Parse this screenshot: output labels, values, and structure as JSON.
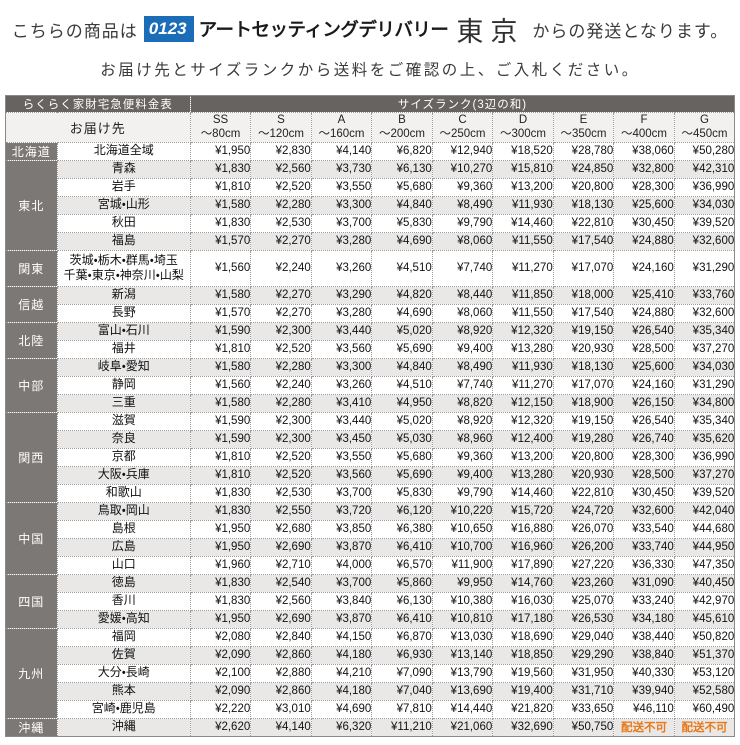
{
  "header": {
    "line1_prefix": "こちらの商品は",
    "logo_badge": "0123",
    "logo_name": "アートセッティングデリバリー",
    "logo_city": "東京",
    "line1_suffix": "からの発送となります。",
    "line2": "お届け先とサイズランクから送料をご確認の上、ご入札ください。"
  },
  "colors": {
    "logo_badge_blue": "#1b6db7",
    "table_header_dark": "#666360",
    "region_gray": "#7c7875",
    "stripe_gray": "#e9e8e7",
    "unavailable_orange": "#e87818"
  },
  "table": {
    "corner_header": "らくらく家財宅急便料金表",
    "size_rank_header": "サイズランク(3辺の和)",
    "destination_header": "お届け先",
    "unavailable_label": "配送不可",
    "size_columns": [
      {
        "rank": "SS",
        "size": "～80cm"
      },
      {
        "rank": "S",
        "size": "～120cm"
      },
      {
        "rank": "A",
        "size": "～160cm"
      },
      {
        "rank": "B",
        "size": "～200cm"
      },
      {
        "rank": "C",
        "size": "～250cm"
      },
      {
        "rank": "D",
        "size": "～300cm"
      },
      {
        "rank": "E",
        "size": "～350cm"
      },
      {
        "rank": "F",
        "size": "～400cm"
      },
      {
        "rank": "G",
        "size": "～450cm"
      }
    ],
    "regions": [
      {
        "name": "北海道",
        "rows": [
          {
            "dest": "北海道全域",
            "prices": [
              "¥1,950",
              "¥2,830",
              "¥4,140",
              "¥6,820",
              "¥12,940",
              "¥18,520",
              "¥28,780",
              "¥38,060",
              "¥50,280"
            ]
          }
        ]
      },
      {
        "name": "東北",
        "rows": [
          {
            "dest": "青森",
            "prices": [
              "¥1,830",
              "¥2,560",
              "¥3,730",
              "¥6,130",
              "¥10,270",
              "¥15,810",
              "¥24,850",
              "¥32,800",
              "¥42,310"
            ]
          },
          {
            "dest": "岩手",
            "prices": [
              "¥1,810",
              "¥2,520",
              "¥3,550",
              "¥5,680",
              "¥9,360",
              "¥13,200",
              "¥20,800",
              "¥28,300",
              "¥36,990"
            ]
          },
          {
            "dest": "宮城・山形",
            "prices": [
              "¥1,580",
              "¥2,280",
              "¥3,300",
              "¥4,840",
              "¥8,490",
              "¥11,930",
              "¥18,130",
              "¥25,600",
              "¥34,030"
            ]
          },
          {
            "dest": "秋田",
            "prices": [
              "¥1,830",
              "¥2,530",
              "¥3,700",
              "¥5,830",
              "¥9,790",
              "¥14,460",
              "¥22,810",
              "¥30,450",
              "¥39,520"
            ]
          },
          {
            "dest": "福島",
            "prices": [
              "¥1,570",
              "¥2,270",
              "¥3,280",
              "¥4,690",
              "¥8,060",
              "¥11,550",
              "¥17,540",
              "¥24,880",
              "¥32,600"
            ]
          }
        ]
      },
      {
        "name": "関東",
        "rows": [
          {
            "dest": "茨城・栃木・群馬・埼玉\n千葉・東京・神奈川・山梨",
            "prices": [
              "¥1,560",
              "¥2,240",
              "¥3,260",
              "¥4,510",
              "¥7,740",
              "¥11,270",
              "¥17,070",
              "¥24,160",
              "¥31,290"
            ]
          }
        ]
      },
      {
        "name": "信越",
        "rows": [
          {
            "dest": "新潟",
            "prices": [
              "¥1,580",
              "¥2,270",
              "¥3,290",
              "¥4,820",
              "¥8,440",
              "¥11,850",
              "¥18,000",
              "¥25,410",
              "¥33,760"
            ]
          },
          {
            "dest": "長野",
            "prices": [
              "¥1,570",
              "¥2,270",
              "¥3,280",
              "¥4,690",
              "¥8,060",
              "¥11,550",
              "¥17,540",
              "¥24,880",
              "¥32,600"
            ]
          }
        ]
      },
      {
        "name": "北陸",
        "rows": [
          {
            "dest": "富山・石川",
            "prices": [
              "¥1,590",
              "¥2,300",
              "¥3,440",
              "¥5,020",
              "¥8,920",
              "¥12,320",
              "¥19,150",
              "¥26,540",
              "¥35,340"
            ]
          },
          {
            "dest": "福井",
            "prices": [
              "¥1,810",
              "¥2,520",
              "¥3,560",
              "¥5,690",
              "¥9,400",
              "¥13,280",
              "¥20,930",
              "¥28,500",
              "¥37,270"
            ]
          }
        ]
      },
      {
        "name": "中部",
        "rows": [
          {
            "dest": "岐阜・愛知",
            "prices": [
              "¥1,580",
              "¥2,280",
              "¥3,300",
              "¥4,840",
              "¥8,490",
              "¥11,930",
              "¥18,130",
              "¥25,600",
              "¥34,030"
            ]
          },
          {
            "dest": "静岡",
            "prices": [
              "¥1,560",
              "¥2,240",
              "¥3,260",
              "¥4,510",
              "¥7,740",
              "¥11,270",
              "¥17,070",
              "¥24,160",
              "¥31,290"
            ]
          },
          {
            "dest": "三重",
            "prices": [
              "¥1,580",
              "¥2,280",
              "¥3,410",
              "¥4,950",
              "¥8,820",
              "¥12,150",
              "¥18,900",
              "¥26,150",
              "¥34,800"
            ]
          }
        ]
      },
      {
        "name": "関西",
        "rows": [
          {
            "dest": "滋賀",
            "prices": [
              "¥1,590",
              "¥2,300",
              "¥3,440",
              "¥5,020",
              "¥8,920",
              "¥12,320",
              "¥19,150",
              "¥26,540",
              "¥35,340"
            ]
          },
          {
            "dest": "奈良",
            "prices": [
              "¥1,590",
              "¥2,300",
              "¥3,450",
              "¥5,030",
              "¥8,960",
              "¥12,400",
              "¥19,280",
              "¥26,740",
              "¥35,620"
            ]
          },
          {
            "dest": "京都",
            "prices": [
              "¥1,810",
              "¥2,520",
              "¥3,550",
              "¥5,680",
              "¥9,360",
              "¥13,200",
              "¥20,800",
              "¥28,300",
              "¥36,990"
            ]
          },
          {
            "dest": "大阪・兵庫",
            "prices": [
              "¥1,810",
              "¥2,520",
              "¥3,560",
              "¥5,690",
              "¥9,400",
              "¥13,280",
              "¥20,930",
              "¥28,500",
              "¥37,270"
            ]
          },
          {
            "dest": "和歌山",
            "prices": [
              "¥1,830",
              "¥2,530",
              "¥3,700",
              "¥5,830",
              "¥9,790",
              "¥14,460",
              "¥22,810",
              "¥30,450",
              "¥39,520"
            ]
          }
        ]
      },
      {
        "name": "中国",
        "rows": [
          {
            "dest": "鳥取・岡山",
            "prices": [
              "¥1,830",
              "¥2,550",
              "¥3,720",
              "¥6,120",
              "¥10,220",
              "¥15,720",
              "¥24,720",
              "¥32,600",
              "¥42,040"
            ]
          },
          {
            "dest": "島根",
            "prices": [
              "¥1,950",
              "¥2,680",
              "¥3,850",
              "¥6,380",
              "¥10,650",
              "¥16,880",
              "¥26,070",
              "¥33,540",
              "¥44,680"
            ]
          },
          {
            "dest": "広島",
            "prices": [
              "¥1,950",
              "¥2,690",
              "¥3,870",
              "¥6,410",
              "¥10,700",
              "¥16,960",
              "¥26,200",
              "¥33,740",
              "¥44,950"
            ]
          },
          {
            "dest": "山口",
            "prices": [
              "¥1,960",
              "¥2,710",
              "¥4,000",
              "¥6,570",
              "¥11,900",
              "¥17,890",
              "¥27,220",
              "¥36,330",
              "¥47,350"
            ]
          }
        ]
      },
      {
        "name": "四国",
        "rows": [
          {
            "dest": "徳島",
            "prices": [
              "¥1,830",
              "¥2,540",
              "¥3,700",
              "¥5,860",
              "¥9,950",
              "¥14,760",
              "¥23,260",
              "¥31,090",
              "¥40,450"
            ]
          },
          {
            "dest": "香川",
            "prices": [
              "¥1,830",
              "¥2,560",
              "¥3,840",
              "¥6,130",
              "¥10,380",
              "¥16,030",
              "¥25,070",
              "¥33,240",
              "¥42,970"
            ]
          },
          {
            "dest": "愛媛・高知",
            "prices": [
              "¥1,950",
              "¥2,690",
              "¥3,870",
              "¥6,410",
              "¥10,810",
              "¥17,180",
              "¥26,530",
              "¥34,180",
              "¥45,610"
            ]
          }
        ]
      },
      {
        "name": "九州",
        "rows": [
          {
            "dest": "福岡",
            "prices": [
              "¥2,080",
              "¥2,840",
              "¥4,150",
              "¥6,870",
              "¥13,030",
              "¥18,690",
              "¥29,040",
              "¥38,440",
              "¥50,820"
            ]
          },
          {
            "dest": "佐賀",
            "prices": [
              "¥2,090",
              "¥2,860",
              "¥4,180",
              "¥6,930",
              "¥13,140",
              "¥18,850",
              "¥29,290",
              "¥38,840",
              "¥51,370"
            ]
          },
          {
            "dest": "大分・長崎",
            "prices": [
              "¥2,100",
              "¥2,880",
              "¥4,210",
              "¥7,090",
              "¥13,790",
              "¥19,560",
              "¥31,950",
              "¥40,330",
              "¥53,120"
            ]
          },
          {
            "dest": "熊本",
            "prices": [
              "¥2,090",
              "¥2,860",
              "¥4,180",
              "¥7,040",
              "¥13,690",
              "¥19,400",
              "¥31,710",
              "¥39,940",
              "¥52,580"
            ]
          },
          {
            "dest": "宮崎・鹿児島",
            "prices": [
              "¥2,220",
              "¥3,010",
              "¥4,690",
              "¥7,810",
              "¥14,440",
              "¥21,820",
              "¥33,650",
              "¥46,110",
              "¥60,490"
            ]
          }
        ]
      },
      {
        "name": "沖縄",
        "rows": [
          {
            "dest": "沖縄",
            "prices": [
              "¥2,620",
              "¥4,140",
              "¥6,320",
              "¥11,210",
              "¥21,060",
              "¥32,690",
              "¥50,750",
              "配送不可",
              "配送不可"
            ]
          }
        ]
      }
    ]
  }
}
